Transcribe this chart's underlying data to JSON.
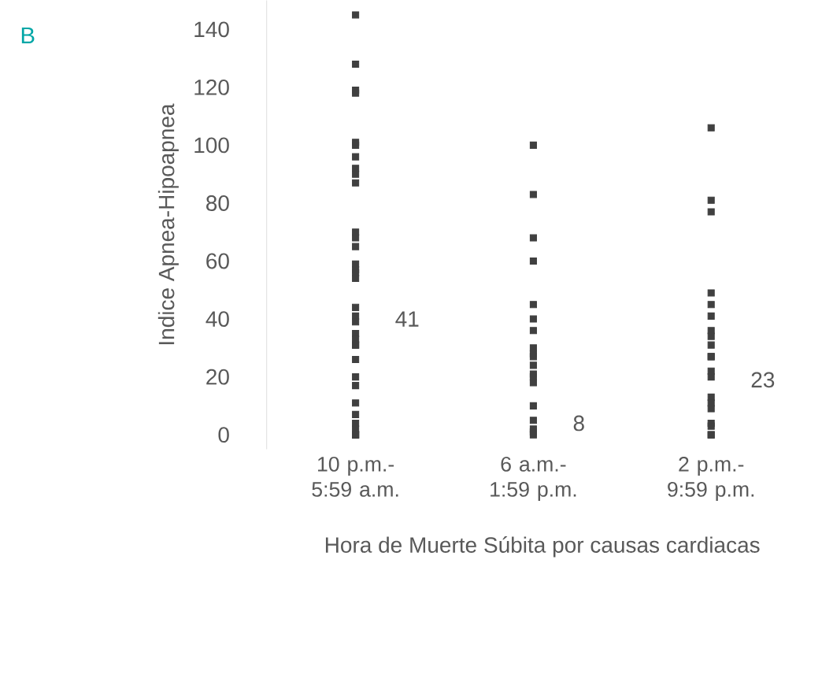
{
  "chart_data": {
    "type": "scatter",
    "title": "B",
    "xlabel": "Hora de Muerte Súbita por causas cardiacas",
    "ylabel": "Indice Apnea-Hipoapnea",
    "categories": [
      "10 p.m.- 5:59 a.m.",
      "6 a.m.- 1:59 p.m.",
      "2 p.m.- 9:59 p.m."
    ],
    "series": [
      {
        "color": "#404040",
        "x": [
          "10 p.m.- 5:59 a.m.",
          "10 p.m.- 5:59 a.m.",
          "10 p.m.- 5:59 a.m.",
          "10 p.m.- 5:59 a.m.",
          "10 p.m.- 5:59 a.m.",
          "10 p.m.- 5:59 a.m.",
          "10 p.m.- 5:59 a.m.",
          "10 p.m.- 5:59 a.m.",
          "10 p.m.- 5:59 a.m.",
          "10 p.m.- 5:59 a.m.",
          "10 p.m.- 5:59 a.m.",
          "10 p.m.- 5:59 a.m.",
          "10 p.m.- 5:59 a.m.",
          "10 p.m.- 5:59 a.m.",
          "10 p.m.- 5:59 a.m.",
          "10 p.m.- 5:59 a.m.",
          "10 p.m.- 5:59 a.m.",
          "10 p.m.- 5:59 a.m.",
          "10 p.m.- 5:59 a.m.",
          "10 p.m.- 5:59 a.m.",
          "10 p.m.- 5:59 a.m.",
          "10 p.m.- 5:59 a.m.",
          "10 p.m.- 5:59 a.m.",
          "10 p.m.- 5:59 a.m.",
          "10 p.m.- 5:59 a.m.",
          "10 p.m.- 5:59 a.m.",
          "10 p.m.- 5:59 a.m.",
          "10 p.m.- 5:59 a.m.",
          "10 p.m.- 5:59 a.m.",
          "10 p.m.- 5:59 a.m.",
          "10 p.m.- 5:59 a.m.",
          "10 p.m.- 5:59 a.m.",
          "10 p.m.- 5:59 a.m.",
          "10 p.m.- 5:59 a.m.",
          "6 a.m.- 1:59 p.m.",
          "6 a.m.- 1:59 p.m.",
          "6 a.m.- 1:59 p.m.",
          "6 a.m.- 1:59 p.m.",
          "6 a.m.- 1:59 p.m.",
          "6 a.m.- 1:59 p.m.",
          "6 a.m.- 1:59 p.m.",
          "6 a.m.- 1:59 p.m.",
          "6 a.m.- 1:59 p.m.",
          "6 a.m.- 1:59 p.m.",
          "6 a.m.- 1:59 p.m.",
          "6 a.m.- 1:59 p.m.",
          "6 a.m.- 1:59 p.m.",
          "6 a.m.- 1:59 p.m.",
          "6 a.m.- 1:59 p.m.",
          "6 a.m.- 1:59 p.m.",
          "6 a.m.- 1:59 p.m.",
          "6 a.m.- 1:59 p.m.",
          "6 a.m.- 1:59 p.m.",
          "2 p.m.- 9:59 p.m.",
          "2 p.m.- 9:59 p.m.",
          "2 p.m.- 9:59 p.m.",
          "2 p.m.- 9:59 p.m.",
          "2 p.m.- 9:59 p.m.",
          "2 p.m.- 9:59 p.m.",
          "2 p.m.- 9:59 p.m.",
          "2 p.m.- 9:59 p.m.",
          "2 p.m.- 9:59 p.m.",
          "2 p.m.- 9:59 p.m.",
          "2 p.m.- 9:59 p.m.",
          "2 p.m.- 9:59 p.m.",
          "2 p.m.- 9:59 p.m.",
          "2 p.m.- 9:59 p.m.",
          "2 p.m.- 9:59 p.m.",
          "2 p.m.- 9:59 p.m.",
          "2 p.m.- 9:59 p.m.",
          "2 p.m.- 9:59 p.m.",
          "2 p.m.- 9:59 p.m.",
          "2 p.m.- 9:59 p.m."
        ],
        "values": [
          145,
          128,
          118,
          119,
          100,
          101,
          96,
          92,
          90,
          87,
          70,
          68,
          65,
          59,
          57,
          56,
          54,
          44,
          41,
          39,
          35,
          33,
          31,
          31,
          26,
          20,
          17,
          11,
          7,
          4,
          2,
          0,
          0,
          0,
          100,
          83,
          68,
          60,
          45,
          40,
          36,
          30,
          28,
          27,
          24,
          21,
          20,
          18,
          10,
          5,
          2,
          1,
          0,
          106,
          81,
          77,
          49,
          45,
          41,
          36,
          34,
          31,
          27,
          27,
          22,
          20,
          13,
          11,
          9,
          4,
          3,
          0,
          0
        ]
      }
    ],
    "ylim": [
      -5,
      150
    ],
    "yticks": [
      0,
      20,
      40,
      60,
      80,
      100,
      120,
      140
    ],
    "marker": "square",
    "annotations": [
      {
        "text": "41",
        "x": "10 p.m.- 5:59 a.m.",
        "y": 40
      },
      {
        "text": "8",
        "x": "6 a.m.- 1:59 p.m.",
        "y": 4
      },
      {
        "text": "23",
        "x": "2 p.m.- 9:59 p.m.",
        "y": 19
      }
    ]
  }
}
